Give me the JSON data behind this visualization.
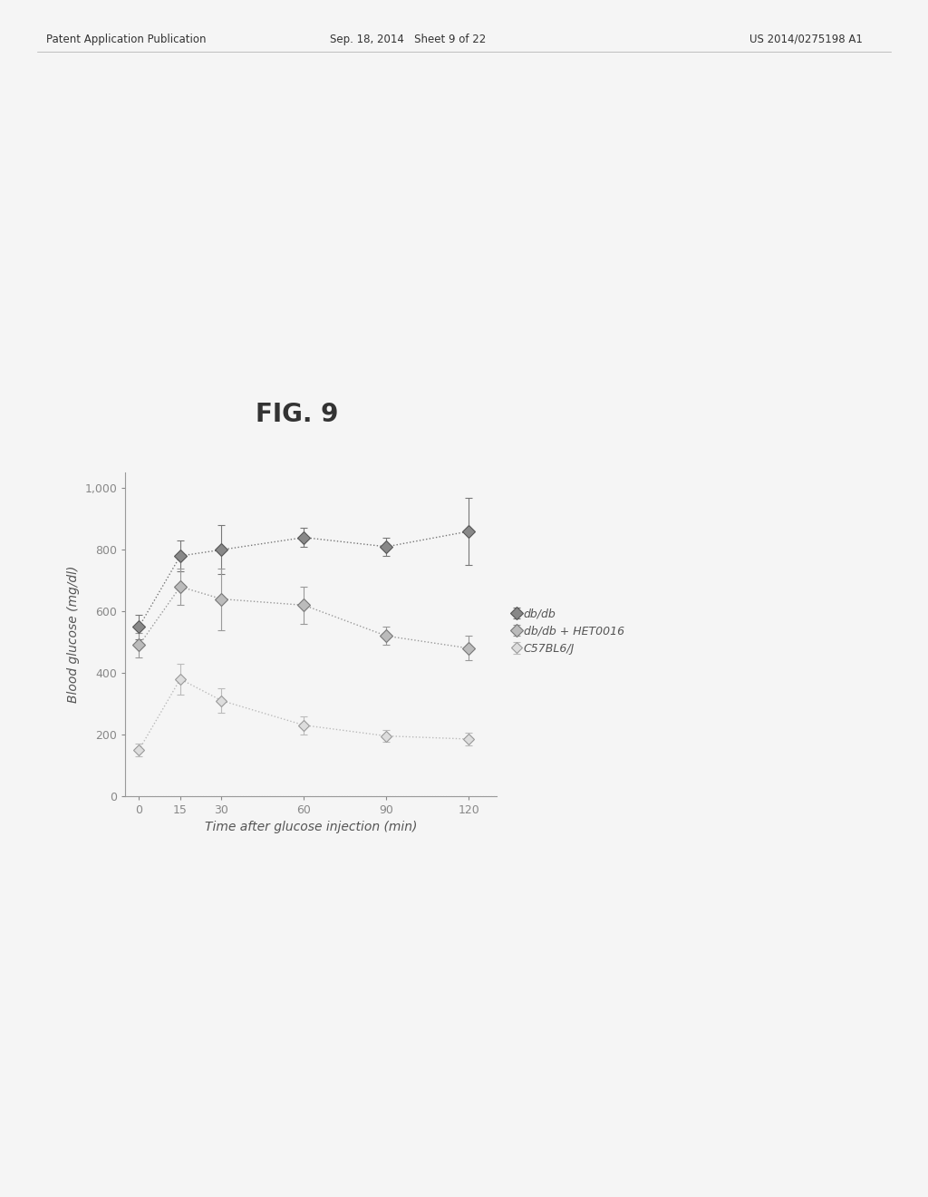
{
  "title": "FIG. 9",
  "xlabel": "Time after glucose injection (min)",
  "ylabel": "Blood glucose (mg/dl)",
  "x": [
    0,
    15,
    30,
    60,
    90,
    120
  ],
  "series": [
    {
      "label": "db/db",
      "y": [
        550,
        780,
        800,
        840,
        810,
        860
      ],
      "yerr": [
        40,
        50,
        80,
        30,
        30,
        110
      ],
      "color": "#777777",
      "linestyle": "dotted",
      "marker": "D",
      "markersize": 7,
      "markerfacecolor": "#888888",
      "markeredgecolor": "#555555"
    },
    {
      "label": "db/db + HET0016",
      "y": [
        490,
        680,
        640,
        620,
        520,
        480
      ],
      "yerr": [
        40,
        60,
        100,
        60,
        30,
        40
      ],
      "color": "#999999",
      "linestyle": "dotted",
      "marker": "D",
      "markersize": 7,
      "markerfacecolor": "#bbbbbb",
      "markeredgecolor": "#777777"
    },
    {
      "label": "C57BL6/J",
      "y": [
        150,
        380,
        310,
        230,
        195,
        185
      ],
      "yerr": [
        20,
        50,
        40,
        30,
        20,
        20
      ],
      "color": "#bbbbbb",
      "linestyle": "dotted",
      "marker": "D",
      "markersize": 6,
      "markerfacecolor": "#dddddd",
      "markeredgecolor": "#999999"
    }
  ],
  "ylim": [
    0,
    1050
  ],
  "yticks": [
    0,
    200,
    400,
    600,
    800,
    1000
  ],
  "ytick_labels": [
    "0",
    "200",
    "400",
    "600",
    "800",
    "1,000"
  ],
  "xlim": [
    -5,
    130
  ],
  "xticks": [
    0,
    15,
    30,
    60,
    90,
    120
  ],
  "background_color": "#f0f0f0",
  "fig_title_fontsize": 20,
  "axis_label_fontsize": 10,
  "tick_fontsize": 9,
  "legend_fontsize": 9,
  "header_left": "Patent Application Publication",
  "header_mid": "Sep. 18, 2014   Sheet 9 of 22",
  "header_right": "US 2014/0275198 A1"
}
